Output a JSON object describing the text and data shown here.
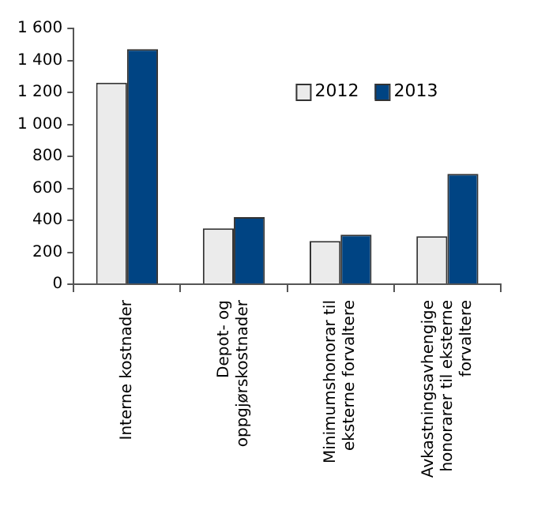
{
  "chart_data": {
    "type": "bar",
    "categories": [
      "Interne kostnader",
      "Depot- og\noppgjørskostnader",
      "Minimumshonorar til\neksterne forvaltere",
      "Avkastningsavhengige\nhonorarer til eksterne\nforvaltere"
    ],
    "series": [
      {
        "name": "2012",
        "color": "#ebebeb",
        "values": [
          1260,
          350,
          270,
          300
        ]
      },
      {
        "name": "2013",
        "color": "#004483",
        "values": [
          1470,
          420,
          310,
          690
        ]
      }
    ],
    "ylim": [
      0,
      1600
    ],
    "yticks": [
      {
        "value": 0,
        "label": "0"
      },
      {
        "value": 200,
        "label": "200"
      },
      {
        "value": 400,
        "label": "400"
      },
      {
        "value": 600,
        "label": "600"
      },
      {
        "value": 800,
        "label": "800"
      },
      {
        "value": 1000,
        "label": "1 000"
      },
      {
        "value": 1200,
        "label": "1 200"
      },
      {
        "value": 1400,
        "label": "1 400"
      },
      {
        "value": 1600,
        "label": "1 600"
      }
    ],
    "grid": false,
    "legend": "top right"
  }
}
